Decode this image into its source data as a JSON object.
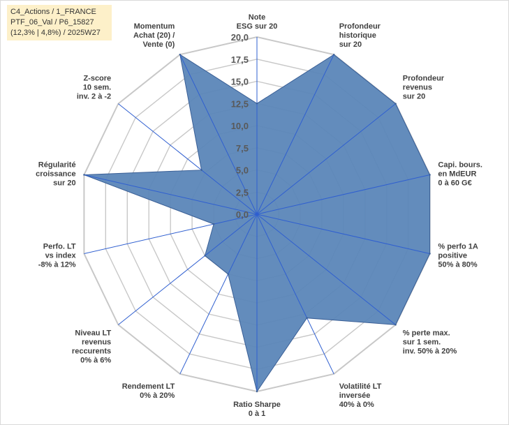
{
  "info": {
    "line1": "C4_Actions / 1_FRANCE",
    "line2": "PTF_06_Val / P6_15827",
    "line3": "(12,3% | 4,8%) / 2025W27"
  },
  "colors": {
    "fill": "#5b86b8",
    "stroke": "#3a5f96",
    "grid": "#c8c8c8",
    "axis": "#2f5fd0",
    "info_bg": "#fdf0c9"
  },
  "chart_data": {
    "type": "radar",
    "rmin": 0,
    "rmax": 20,
    "ticks": [
      "0,0",
      "2,5",
      "5,0",
      "7,5",
      "10,0",
      "12,5",
      "15,0",
      "17,5",
      "20,0"
    ],
    "categories": [
      [
        "Note",
        "ESG sur 20"
      ],
      [
        "Profondeur",
        "historique",
        "sur 20"
      ],
      [
        "Profondeur",
        "revenus",
        "sur 20"
      ],
      [
        "Capi. bours.",
        "en MdEUR",
        "0 à 60 G€"
      ],
      [
        "% perfo 1A",
        "positive",
        "50% à 80%"
      ],
      [
        "% perte max.",
        "sur 1 sem.",
        "inv. 50% à 20%"
      ],
      [
        "Volatilité LT",
        "inversée",
        "40% à 0%"
      ],
      [
        "Ratio Sharpe",
        "0 à 1"
      ],
      [
        "Rendement LT",
        "0% à 20%"
      ],
      [
        "Niveau LT",
        "revenus",
        "reccurents",
        "0% à 6%"
      ],
      [
        "Perfo. LT",
        "vs index",
        "-8% à 12%"
      ],
      [
        "Régularité",
        "croissance",
        "sur 20"
      ],
      [
        "Z-score",
        "10 sem.",
        "inv. 2 à -2"
      ],
      [
        "Momentum",
        "Achat (20) /",
        "Vente (0)"
      ]
    ],
    "values": [
      12.5,
      20.0,
      20.0,
      20.0,
      20.0,
      20.0,
      13.0,
      20.0,
      7.5,
      7.5,
      5.0,
      20.0,
      8.0,
      20.0
    ],
    "grid": true,
    "legend": "none"
  }
}
